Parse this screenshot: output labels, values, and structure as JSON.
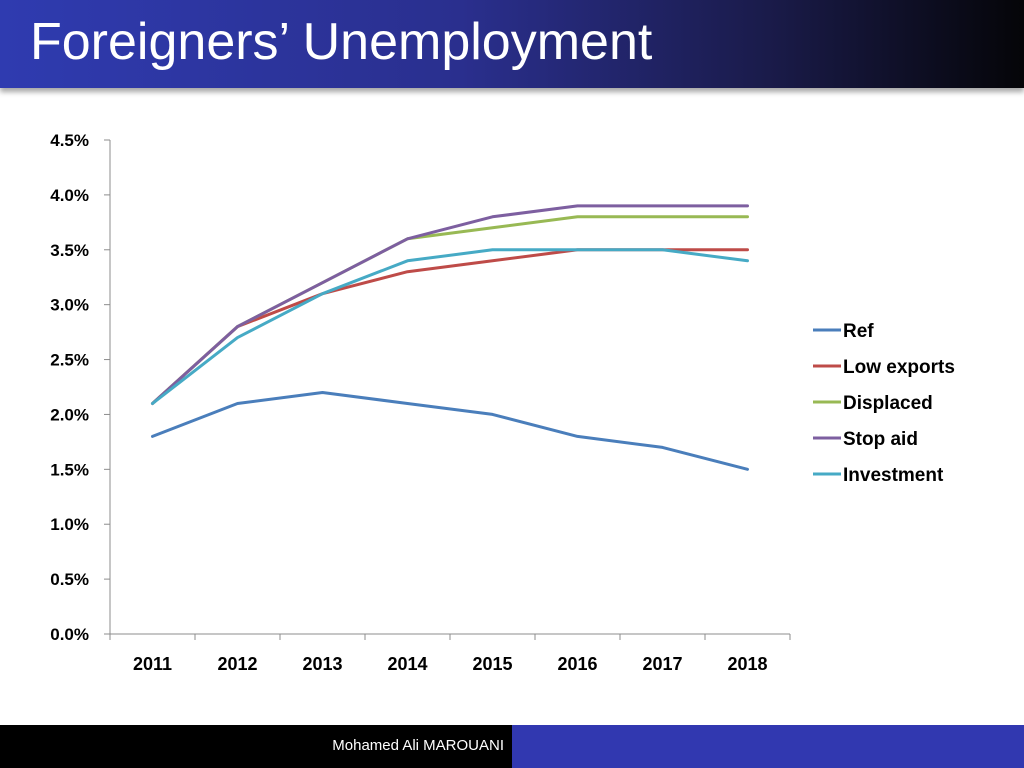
{
  "slide": {
    "title": "Foreigners’ Unemployment",
    "author": "Mohamed Ali MAROUANI"
  },
  "chart_data": {
    "type": "line",
    "title": "",
    "xlabel": "",
    "ylabel": "",
    "categories": [
      "2011",
      "2012",
      "2013",
      "2014",
      "2015",
      "2016",
      "2017",
      "2018"
    ],
    "ylim": [
      0,
      4.5
    ],
    "yticks": [
      "0.0%",
      "0.5%",
      "1.0%",
      "1.5%",
      "2.0%",
      "2.5%",
      "3.0%",
      "3.5%",
      "4.0%",
      "4.5%"
    ],
    "legend_position": "right",
    "grid": false,
    "series": [
      {
        "name": "Ref",
        "color": "#4a7ebb",
        "values": [
          1.8,
          2.1,
          2.2,
          2.1,
          2.0,
          1.8,
          1.7,
          1.5
        ]
      },
      {
        "name": "Low exports",
        "color": "#be4b48",
        "values": [
          2.1,
          2.8,
          3.1,
          3.3,
          3.4,
          3.5,
          3.5,
          3.5
        ]
      },
      {
        "name": "Displaced",
        "color": "#98b954",
        "values": [
          2.1,
          2.8,
          3.2,
          3.6,
          3.7,
          3.8,
          3.8,
          3.8
        ]
      },
      {
        "name": "Stop aid",
        "color": "#7d5fa0",
        "values": [
          2.1,
          2.8,
          3.2,
          3.6,
          3.8,
          3.9,
          3.9,
          3.9
        ]
      },
      {
        "name": "Investment",
        "color": "#46aac5",
        "values": [
          2.1,
          2.7,
          3.1,
          3.4,
          3.5,
          3.5,
          3.5,
          3.4
        ]
      }
    ]
  }
}
